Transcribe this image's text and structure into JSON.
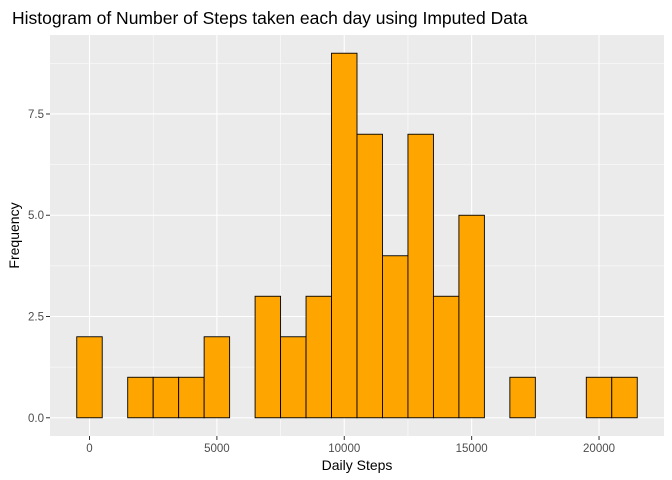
{
  "chart_data": {
    "type": "bar",
    "title": "Histogram of Number of Steps taken each day using Imputed Data",
    "xlabel": "Daily Steps",
    "ylabel": "Frequency",
    "bin_width": 1000,
    "bins": [
      {
        "center": 0,
        "count": 2
      },
      {
        "center": 1000,
        "count": 0
      },
      {
        "center": 2000,
        "count": 1
      },
      {
        "center": 3000,
        "count": 1
      },
      {
        "center": 4000,
        "count": 1
      },
      {
        "center": 5000,
        "count": 2
      },
      {
        "center": 6000,
        "count": 0
      },
      {
        "center": 7000,
        "count": 3
      },
      {
        "center": 8000,
        "count": 2
      },
      {
        "center": 9000,
        "count": 3
      },
      {
        "center": 10000,
        "count": 9
      },
      {
        "center": 11000,
        "count": 7
      },
      {
        "center": 12000,
        "count": 4
      },
      {
        "center": 13000,
        "count": 7
      },
      {
        "center": 14000,
        "count": 3
      },
      {
        "center": 15000,
        "count": 5
      },
      {
        "center": 16000,
        "count": 0
      },
      {
        "center": 17000,
        "count": 1
      },
      {
        "center": 18000,
        "count": 0
      },
      {
        "center": 19000,
        "count": 0
      },
      {
        "center": 20000,
        "count": 1
      },
      {
        "center": 21000,
        "count": 1
      }
    ],
    "xlim": [
      -1550,
      22550
    ],
    "ylim": [
      -0.45,
      9.45
    ],
    "x_ticks": [
      0,
      5000,
      10000,
      15000,
      20000
    ],
    "x_tick_labels": [
      "0",
      "5000",
      "10000",
      "15000",
      "20000"
    ],
    "y_ticks": [
      0,
      2.5,
      5,
      7.5
    ],
    "y_tick_labels": [
      "0.0",
      "2.5",
      "5.0",
      "7.5"
    ],
    "grid": true,
    "legend": "none",
    "colors": {
      "bar_fill": "#ffa500",
      "bar_outline": "#000000",
      "panel": "#ebebeb",
      "grid": "#ffffff"
    }
  }
}
